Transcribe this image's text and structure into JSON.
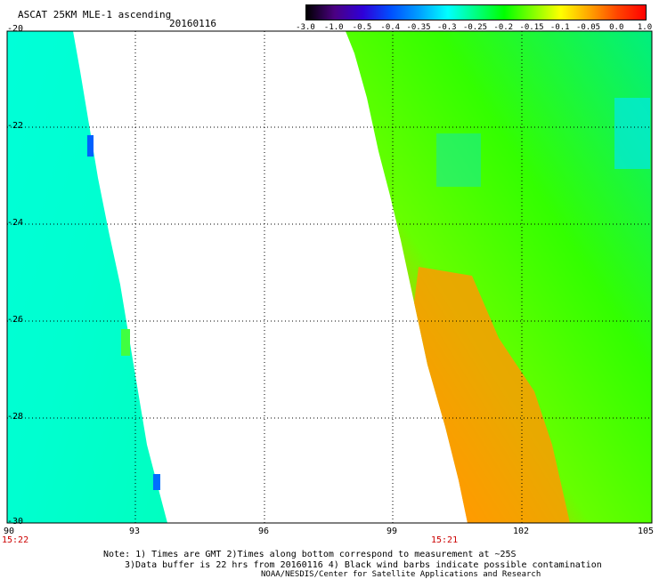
{
  "header": {
    "title": "ASCAT 25KM MLE-1 ascending",
    "date": "20160116"
  },
  "colorbar": {
    "labels": [
      "-3.0",
      "-1.0",
      "-0.5",
      "-0.4",
      "-0.35",
      "-0.3",
      "-0.25",
      "-0.2",
      "-0.15",
      "-0.1",
      "-0.05",
      "0.0",
      "1.0"
    ],
    "colors": [
      "#000000",
      "#4b0082",
      "#2f00d8",
      "#0050ff",
      "#00a0ff",
      "#00ffff",
      "#00ff80",
      "#00ff00",
      "#80ff00",
      "#ffff00",
      "#ffa500",
      "#ff4500",
      "#ff0000"
    ]
  },
  "axes": {
    "lon_ticks": [
      "90",
      "93",
      "96",
      "99",
      "102",
      "105"
    ],
    "lat_ticks": [
      "-20",
      "-22",
      "-24",
      "-26",
      "-28",
      "-30"
    ]
  },
  "times": {
    "left": "15:22",
    "right": "15:21"
  },
  "notes": {
    "line1": "Note: 1) Times are GMT 2)Times along bottom correspond to measurement at ~25S",
    "line2": "3)Data buffer is 22 hrs from 20160116 4) Black wind barbs indicate possible contamination",
    "line3": "NOAA/NESDIS/Center for Satellite Applications and Research"
  }
}
